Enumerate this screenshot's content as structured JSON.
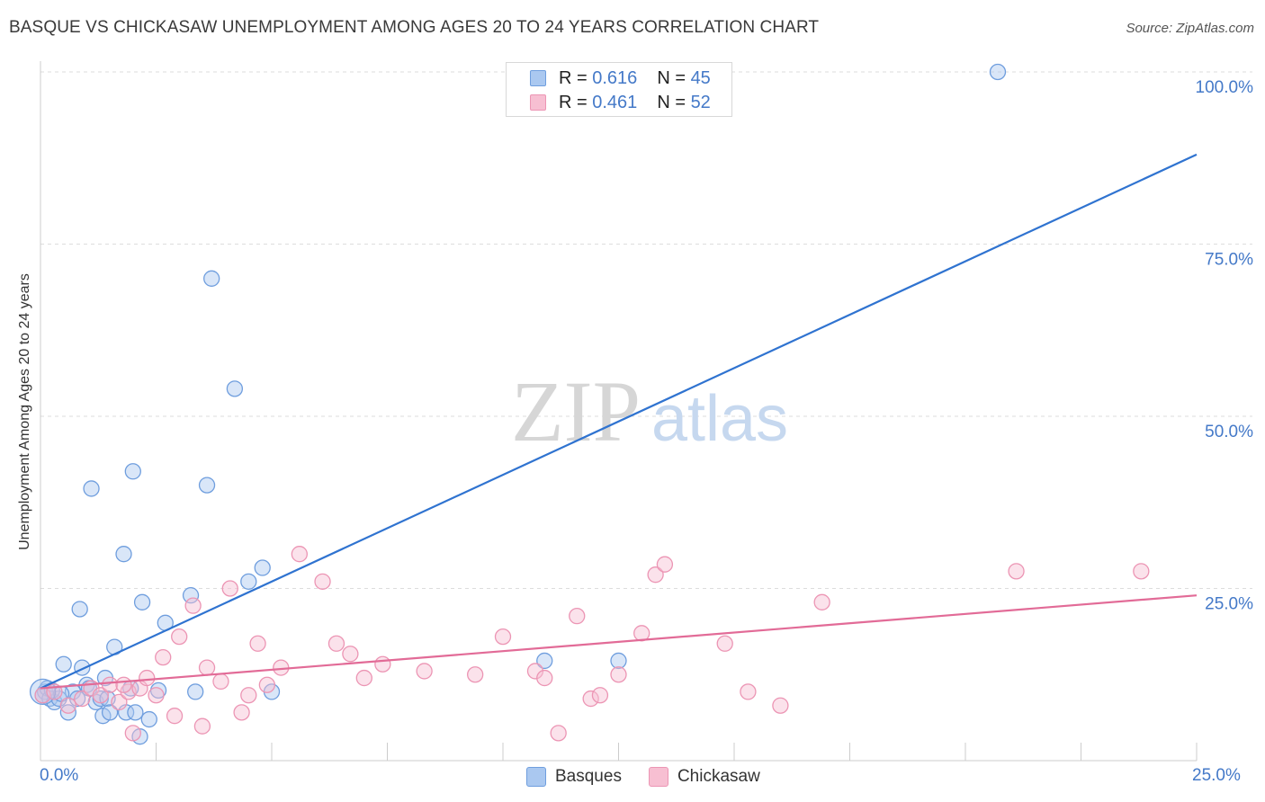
{
  "title": "BASQUE VS CHICKASAW UNEMPLOYMENT AMONG AGES 20 TO 24 YEARS CORRELATION CHART",
  "source": "Source: ZipAtlas.com",
  "watermark": {
    "zip": "ZIP",
    "atlas": "atlas"
  },
  "legend_top": [
    {
      "r_label": "R = ",
      "r_value": "0.616",
      "n_label": "N = ",
      "n_value": "45"
    },
    {
      "r_label": "R = ",
      "r_value": "0.461",
      "n_label": "N = ",
      "n_value": "52"
    }
  ],
  "chart_data": {
    "type": "scatter",
    "title": "BASQUE VS CHICKASAW UNEMPLOYMENT AMONG AGES 20 TO 24 YEARS CORRELATION CHART",
    "xlabel": "",
    "ylabel": "Unemployment Among Ages 20 to 24 years",
    "xlim": [
      0,
      25
    ],
    "ylim": [
      0,
      100
    ],
    "x_tick_labels": [
      "0.0%",
      "25.0%"
    ],
    "y_ticks": [
      25,
      50,
      75,
      100
    ],
    "y_tick_labels": [
      "25.0%",
      "50.0%",
      "75.0%",
      "100.0%"
    ],
    "legend": [
      "Basques",
      "Chickasaw"
    ],
    "colors": {
      "basques_fill": "#aac8f0",
      "basques_stroke": "#6f9ede",
      "basques_line": "#2f73d0",
      "chickasaw_fill": "#f7bfd2",
      "chickasaw_stroke": "#ec95b4",
      "chickasaw_line": "#e26b97",
      "grid": "#dddddd",
      "axis_text": "#4479c8"
    },
    "series": [
      {
        "name": "Basques",
        "R": 0.616,
        "N": 45,
        "trendline": {
          "x": [
            0,
            25
          ],
          "y": [
            10.5,
            88
          ]
        },
        "points": [
          [
            0.05,
            9.5
          ],
          [
            0.1,
            10
          ],
          [
            0.15,
            10.5
          ],
          [
            0.2,
            9
          ],
          [
            0.3,
            8.5
          ],
          [
            0.4,
            9
          ],
          [
            0.5,
            14
          ],
          [
            0.6,
            7
          ],
          [
            0.7,
            10
          ],
          [
            0.8,
            9
          ],
          [
            0.85,
            22
          ],
          [
            0.9,
            13.5
          ],
          [
            1.0,
            11
          ],
          [
            1.1,
            39.5
          ],
          [
            1.2,
            8.5
          ],
          [
            1.3,
            9
          ],
          [
            1.35,
            6.5
          ],
          [
            1.4,
            12
          ],
          [
            1.45,
            9
          ],
          [
            1.5,
            7
          ],
          [
            1.6,
            16.5
          ],
          [
            1.8,
            30
          ],
          [
            1.85,
            7
          ],
          [
            1.95,
            10.5
          ],
          [
            2.0,
            42
          ],
          [
            2.05,
            7
          ],
          [
            2.15,
            3.5
          ],
          [
            2.2,
            23
          ],
          [
            2.35,
            6
          ],
          [
            2.7,
            20
          ],
          [
            3.25,
            24
          ],
          [
            3.35,
            10
          ],
          [
            3.6,
            40
          ],
          [
            3.7,
            70
          ],
          [
            4.2,
            54
          ],
          [
            4.5,
            26
          ],
          [
            4.8,
            28
          ],
          [
            5.0,
            10
          ],
          [
            10.9,
            14.5
          ],
          [
            12.5,
            14.5
          ],
          [
            20.7,
            100
          ],
          [
            0.25,
            10.2
          ],
          [
            0.45,
            9.7
          ],
          [
            1.05,
            10.5
          ],
          [
            2.55,
            10.2
          ]
        ]
      },
      {
        "name": "Chickasaw",
        "R": 0.461,
        "N": 52,
        "trendline": {
          "x": [
            0,
            25
          ],
          "y": [
            10.5,
            24
          ]
        },
        "points": [
          [
            0.05,
            9.5
          ],
          [
            0.3,
            10
          ],
          [
            0.6,
            8
          ],
          [
            0.9,
            9
          ],
          [
            1.1,
            10.5
          ],
          [
            1.3,
            9.5
          ],
          [
            1.5,
            11
          ],
          [
            1.7,
            8.5
          ],
          [
            1.9,
            10
          ],
          [
            2.0,
            4
          ],
          [
            2.15,
            10.5
          ],
          [
            2.3,
            12
          ],
          [
            2.5,
            9.5
          ],
          [
            2.65,
            15
          ],
          [
            2.9,
            6.5
          ],
          [
            3.0,
            18
          ],
          [
            3.3,
            22.5
          ],
          [
            3.5,
            5
          ],
          [
            3.6,
            13.5
          ],
          [
            3.9,
            11.5
          ],
          [
            4.1,
            25
          ],
          [
            4.35,
            7
          ],
          [
            4.5,
            9.5
          ],
          [
            4.7,
            17
          ],
          [
            4.9,
            11
          ],
          [
            5.2,
            13.5
          ],
          [
            5.6,
            30
          ],
          [
            6.1,
            26
          ],
          [
            6.4,
            17
          ],
          [
            6.7,
            15.5
          ],
          [
            7.0,
            12
          ],
          [
            7.4,
            14
          ],
          [
            8.3,
            13
          ],
          [
            9.4,
            12.5
          ],
          [
            10.0,
            18
          ],
          [
            10.7,
            13
          ],
          [
            10.9,
            12
          ],
          [
            11.2,
            4
          ],
          [
            11.6,
            21
          ],
          [
            11.9,
            9
          ],
          [
            12.1,
            9.5
          ],
          [
            12.5,
            12.5
          ],
          [
            13.0,
            18.5
          ],
          [
            13.3,
            27
          ],
          [
            13.5,
            28.5
          ],
          [
            14.8,
            17
          ],
          [
            15.3,
            10
          ],
          [
            16.0,
            8
          ],
          [
            16.9,
            23
          ],
          [
            21.1,
            27.5
          ],
          [
            23.8,
            27.5
          ],
          [
            1.8,
            11
          ]
        ]
      }
    ]
  }
}
